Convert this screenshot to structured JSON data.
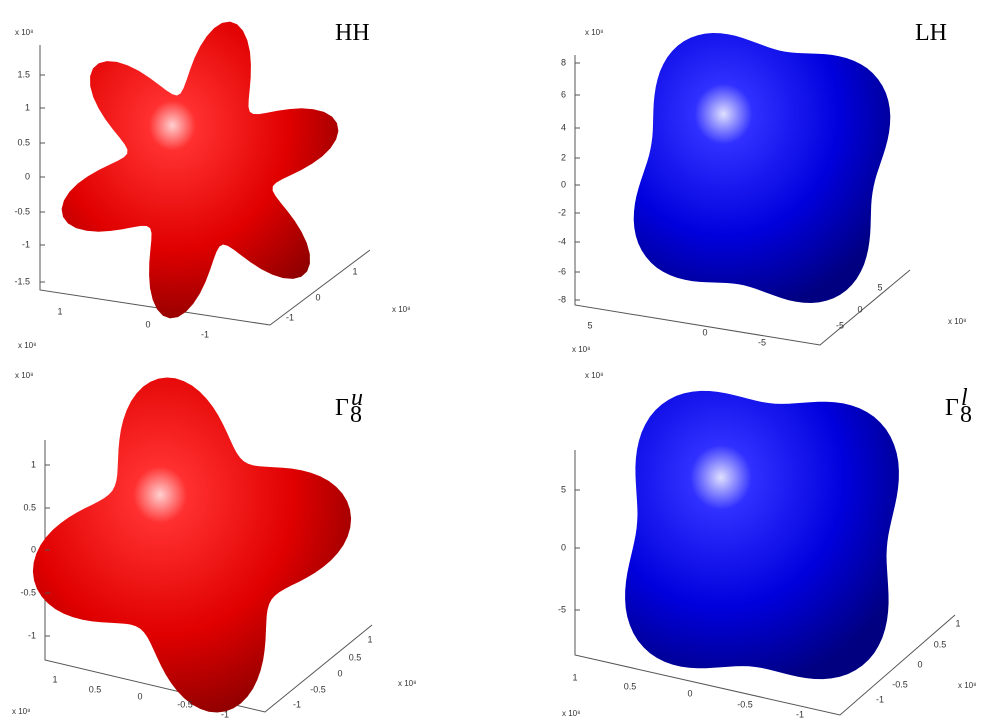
{
  "panels": [
    {
      "title": {
        "text": "HH"
      },
      "exponent_labels": [
        "x 10⁸",
        "x 10⁸",
        "x 10⁸"
      ],
      "z_ticks": [
        "1.5",
        "1",
        "0.5",
        "0",
        "-0.5",
        "-1",
        "-1.5"
      ],
      "x_ticks": [
        "1",
        "0",
        "-1"
      ],
      "y_ticks": [
        "1",
        "0",
        "-1"
      ]
    },
    {
      "title": {
        "text": "LH"
      },
      "exponent_labels": [
        "x 10⁸",
        "x 10⁸",
        "x 10⁸"
      ],
      "z_ticks": [
        "8",
        "6",
        "4",
        "2",
        "0",
        "-2",
        "-4",
        "-6",
        "-8"
      ],
      "x_ticks": [
        "5",
        "0",
        "-5"
      ],
      "y_ticks": [
        "5",
        "0",
        "-5"
      ]
    },
    {
      "title": {
        "symbol": "Γ",
        "subscript": "8",
        "superscript": "u"
      },
      "exponent_labels": [
        "x 10⁸",
        "x 10⁸",
        "x 10⁸"
      ],
      "z_ticks": [
        "1",
        "0.5",
        "0",
        "-0.5",
        "-1"
      ],
      "x_ticks": [
        "1",
        "0.5",
        "0",
        "-0.5",
        "-1"
      ],
      "y_ticks": [
        "1",
        "0.5",
        "0",
        "-0.5",
        "-1"
      ]
    },
    {
      "title": {
        "symbol": "Γ",
        "subscript": "8",
        "superscript": "l"
      },
      "exponent_labels": [
        "x 10⁸",
        "x 10⁸",
        "x 10⁸"
      ],
      "z_ticks": [
        "5",
        "0",
        "-5"
      ],
      "x_ticks": [
        "1",
        "0.5",
        "0",
        "-0.5",
        "-1"
      ],
      "y_ticks": [
        "1",
        "0.5",
        "0",
        "-0.5",
        "-1"
      ]
    }
  ]
}
